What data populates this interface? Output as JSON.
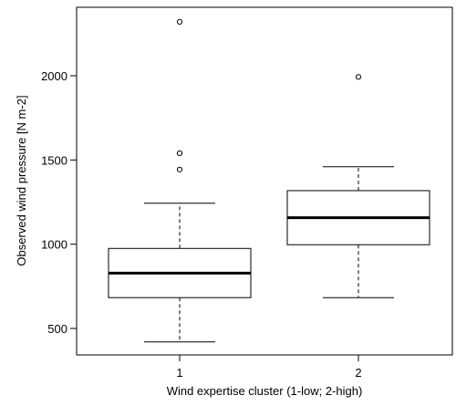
{
  "chart_data": {
    "type": "box",
    "title": "",
    "xlabel": "Wind expertise cluster (1-low; 2-high)",
    "ylabel": "Observed wind pressure [N m-2]",
    "categories": [
      "1",
      "2"
    ],
    "ylim": [
      385,
      2420
    ],
    "yticks": [
      500,
      1000,
      1500,
      2000
    ],
    "grid": false,
    "boxes": [
      {
        "category": "1",
        "whisker_low": 420,
        "q1": 683,
        "median": 828,
        "q3": 975,
        "whisker_high": 1243,
        "outliers": [
          1443,
          1540,
          2320
        ]
      },
      {
        "category": "2",
        "whisker_low": 683,
        "q1": 997,
        "median": 1157,
        "q3": 1318,
        "whisker_high": 1460,
        "outliers": [
          1993
        ]
      }
    ]
  }
}
